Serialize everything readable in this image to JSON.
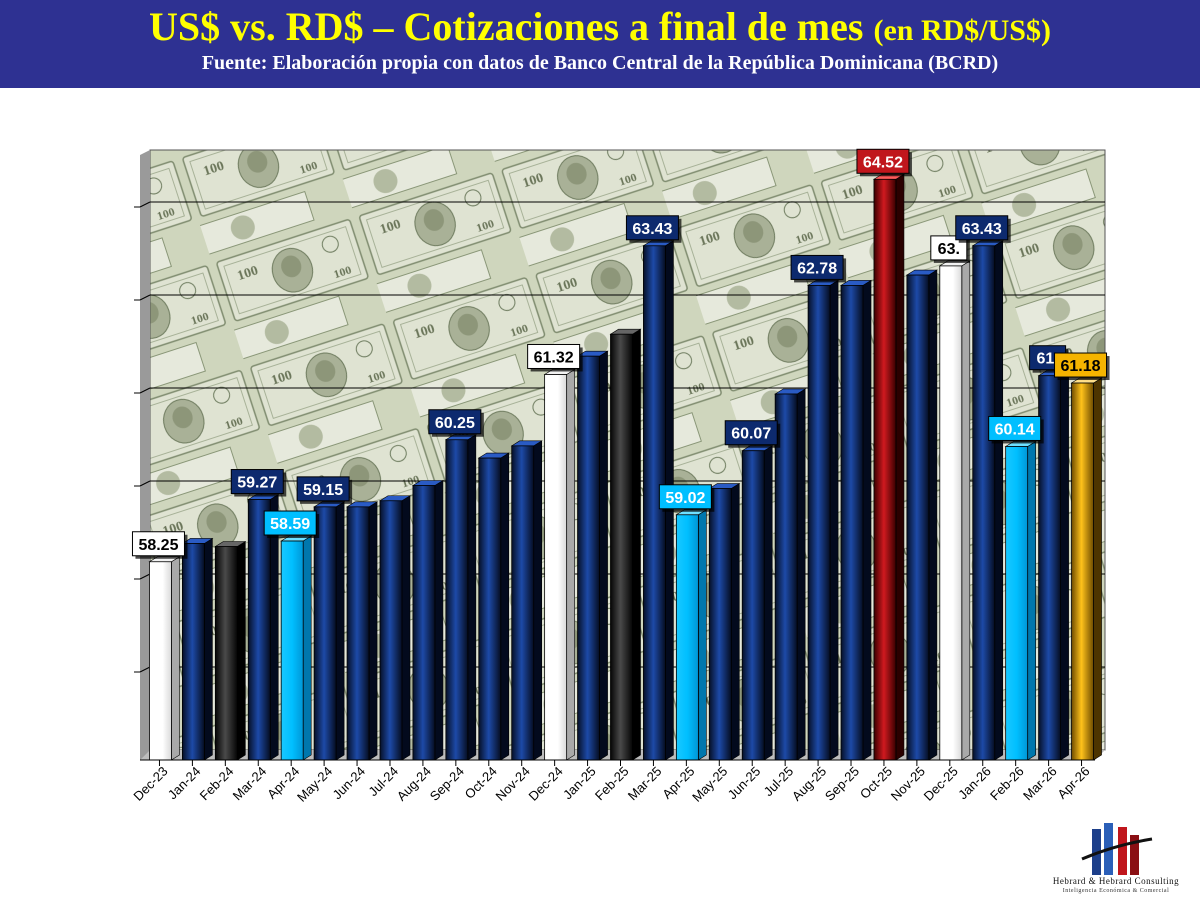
{
  "header": {
    "title_main": "US$ vs. RD$ – Cotizaciones a final de mes",
    "title_unit": "(en RD$/US$)",
    "source": "Fuente: Elaboración propia con datos de Banco Central de la República Dominicana (BCRD)"
  },
  "chart_data": {
    "type": "bar",
    "title": "US$ vs. RD$ – Cotizaciones a final de mes (en RD$/US$)",
    "xlabel": "",
    "ylabel": "",
    "ylim": [
      55.0,
      65.0
    ],
    "grid": true,
    "categories": [
      "Dec-23",
      "Jan-24",
      "Feb-24",
      "Mar-24",
      "Apr-24",
      "May-24",
      "Jun-24",
      "Jul-24",
      "Aug-24",
      "Sep-24",
      "Oct-24",
      "Nov-24",
      "Dec-24",
      "Jan-25",
      "Feb-25",
      "Mar-25",
      "Apr-25",
      "May-25",
      "Jun-25",
      "Jul-25",
      "Aug-25",
      "Sep-25",
      "Oct-25",
      "Nov-25",
      "Dec-25",
      "Jan-26",
      "Feb-26",
      "Mar-26",
      "Apr-26"
    ],
    "values": [
      58.25,
      58.55,
      58.5,
      59.27,
      58.59,
      59.15,
      59.15,
      59.25,
      59.5,
      60.25,
      59.95,
      60.15,
      61.32,
      61.62,
      61.98,
      63.43,
      59.02,
      59.45,
      60.07,
      61.0,
      62.78,
      62.78,
      64.52,
      62.95,
      63.1,
      63.43,
      60.14,
      61.3,
      61.18
    ],
    "value_labels": [
      "58.25",
      "",
      "",
      "59.27",
      "58.59",
      "59.15",
      "",
      "",
      "",
      "60.25",
      "",
      "",
      "61.32",
      "",
      "",
      "63.43",
      "59.02",
      "",
      "60.07",
      "",
      "62.78",
      "",
      "64.52",
      "",
      "63.",
      "63.43",
      "60.14",
      "61.",
      "61.18"
    ],
    "bar_styles": [
      "white",
      "navy",
      "black",
      "navy",
      "cyan",
      "navy",
      "navy",
      "navy",
      "navy",
      "navy",
      "navy",
      "navy",
      "white",
      "navy",
      "black",
      "navy",
      "cyan",
      "navy",
      "navy",
      "navy",
      "navy",
      "navy",
      "red",
      "navy",
      "white",
      "navy",
      "cyan",
      "navy",
      "gold"
    ],
    "colors": {
      "navy": "#0d2a6e",
      "black": "#1a1a1a",
      "white": "#ffffff",
      "cyan": "#00bfff",
      "red": "#c0161c",
      "gold": "#f5b400",
      "header_bg": "#2e3192",
      "title": "#ffff00",
      "money_green": "#c9d2b2"
    }
  },
  "logo": {
    "name": "Hebrard & Hebrard Consulting",
    "tagline": "Inteligencia Económica & Comercial"
  }
}
